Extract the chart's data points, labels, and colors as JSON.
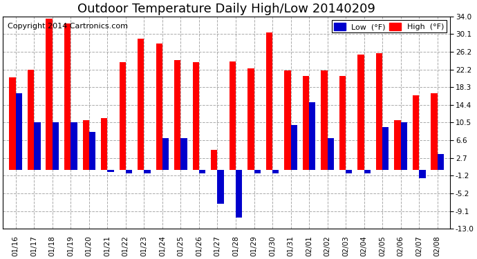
{
  "title": "Outdoor Temperature Daily High/Low 20140209",
  "copyright": "Copyright 2014 Cartronics.com",
  "legend_low": "Low  (°F)",
  "legend_high": "High  (°F)",
  "dates": [
    "01/16",
    "01/17",
    "01/18",
    "01/19",
    "01/20",
    "01/21",
    "01/22",
    "01/23",
    "01/24",
    "01/25",
    "01/26",
    "01/27",
    "01/28",
    "01/29",
    "01/30",
    "01/31",
    "02/01",
    "02/02",
    "02/03",
    "02/04",
    "02/05",
    "02/06",
    "02/07",
    "02/08"
  ],
  "highs": [
    20.5,
    22.2,
    33.5,
    32.5,
    11.0,
    11.5,
    23.8,
    29.0,
    28.0,
    24.3,
    23.8,
    4.5,
    24.0,
    22.5,
    30.5,
    22.0,
    20.8,
    22.0,
    20.8,
    25.5,
    25.8,
    11.0,
    16.5,
    17.0
  ],
  "lows": [
    17.0,
    10.5,
    10.5,
    10.5,
    8.5,
    -0.5,
    -0.8,
    -0.8,
    7.0,
    7.0,
    -0.8,
    -7.5,
    -10.5,
    -0.8,
    -0.8,
    10.0,
    15.0,
    7.0,
    -0.8,
    -0.8,
    9.5,
    10.5,
    -1.8,
    3.5
  ],
  "ylim": [
    -13.0,
    34.0
  ],
  "yticks": [
    -13.0,
    -9.1,
    -5.2,
    -1.2,
    2.7,
    6.6,
    10.5,
    14.4,
    18.3,
    22.2,
    26.2,
    30.1,
    34.0
  ],
  "bar_width": 0.35,
  "high_color": "#ff0000",
  "low_color": "#0000cc",
  "bg_color": "#ffffff",
  "grid_color": "#aaaaaa",
  "title_fontsize": 13,
  "copyright_fontsize": 8,
  "tick_fontsize": 7.5
}
